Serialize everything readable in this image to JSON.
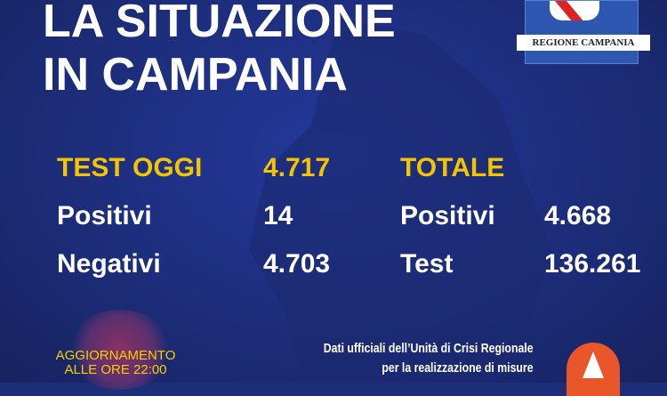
{
  "header": {
    "line1": "LA SITUAZIONE",
    "line2": "IN CAMPANIA"
  },
  "logo": {
    "label": "REGIONE CAMPANIA"
  },
  "today": {
    "label": "TEST OGGI",
    "value": "4.717",
    "rows": [
      {
        "label": "Positivi",
        "value": "14"
      },
      {
        "label": "Negativi",
        "value": "4.703"
      }
    ]
  },
  "total": {
    "label": "TOTALE",
    "rows": [
      {
        "label": "Positivi",
        "value": "4.668"
      },
      {
        "label": "Test",
        "value": "136.261"
      }
    ]
  },
  "update": {
    "line1": "AGGIORNAMENTO",
    "line2": "ALLE ORE 22:00"
  },
  "footer": {
    "line1": "Dati ufficiali dell’Unità di Crisi Regionale",
    "line2": "per la realizzazione di misure"
  },
  "colors": {
    "background": "#1d2f7a",
    "accent": "#f5c400"
  }
}
